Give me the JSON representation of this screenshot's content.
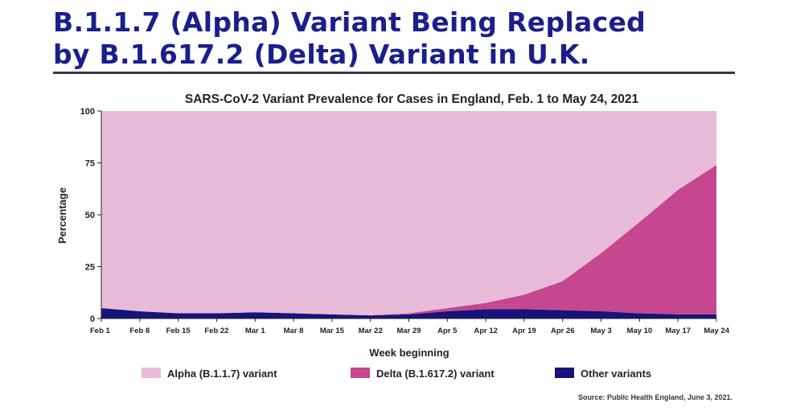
{
  "header": {
    "title_line1": "B.1.1.7 (Alpha) Variant Being Replaced",
    "title_line2": "by B.1.617.2 (Delta) Variant in U.K."
  },
  "colors": {
    "alpha": "#e8bcd8",
    "delta": "#c4478f",
    "other": "#16147a",
    "headline": "#1a1f8c"
  },
  "chart_data": {
    "type": "area",
    "stacked": true,
    "title": "SARS-CoV-2 Variant Prevalence for Cases in England, Feb. 1 to May 24, 2021",
    "xlabel": "Week beginning",
    "ylabel": "Percentage",
    "ylim": [
      0,
      100
    ],
    "yticks": [
      0,
      25,
      50,
      75,
      100
    ],
    "categories": [
      "Feb 1",
      "Feb 8",
      "Feb 15",
      "Feb 22",
      "Mar 1",
      "Mar 8",
      "Mar 15",
      "Mar 22",
      "Mar 29",
      "Apr 5",
      "Apr 12",
      "Apr 19",
      "Apr 26",
      "May 3",
      "May 10",
      "May 17",
      "May 24"
    ],
    "series": [
      {
        "name": "Other variants",
        "values": [
          5,
          3.5,
          2.5,
          2.5,
          3,
          2.5,
          2,
          1.5,
          2,
          3.5,
          4.5,
          4.5,
          4,
          3.5,
          2.5,
          2,
          2
        ]
      },
      {
        "name": "Delta (B.1.617.2) variant",
        "values": [
          0,
          0,
          0,
          0,
          0,
          0,
          0,
          0,
          0.5,
          1.5,
          3,
          7,
          14,
          28,
          44,
          60,
          72
        ]
      },
      {
        "name": "Alpha (B.1.1.7) variant",
        "values": [
          95,
          96.5,
          97.5,
          97.5,
          97,
          97.5,
          98,
          98.5,
          97.5,
          95,
          92.5,
          88.5,
          82,
          68.5,
          53.5,
          38,
          26
        ]
      }
    ],
    "legend": {
      "position": "bottom",
      "entries": [
        "Alpha (B.1.1.7) variant",
        "Delta (B.1.617.2) variant",
        "Other variants"
      ]
    },
    "source": "Source: Public Health England, June 3, 2021."
  }
}
